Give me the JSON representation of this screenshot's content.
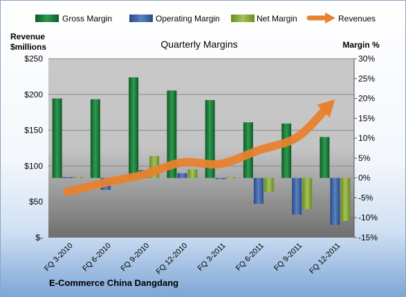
{
  "chart_data": {
    "type": "bar",
    "title": "Quarterly Margins",
    "footer": "E-Commerce China Dangdang",
    "left_axis_label_line1": "Revenue",
    "left_axis_label_line2": "$millions",
    "right_axis_label": "Margin %",
    "categories": [
      "FQ 3-2010",
      "FQ 6-2010",
      "FQ 9-2010",
      "FQ 12-2010",
      "FQ 3-2011",
      "FQ 6-2011",
      "FQ 9-2011",
      "FQ 12-2011"
    ],
    "left_ticks": [
      "$-",
      "$50",
      "$100",
      "$150",
      "$200",
      "$250"
    ],
    "left_tick_values": [
      0,
      50,
      100,
      150,
      200,
      250
    ],
    "right_ticks": [
      "-15%",
      "-10%",
      "-5%",
      "0%",
      "5%",
      "10%",
      "15%",
      "20%",
      "25%",
      "30%"
    ],
    "right_tick_values": [
      -15,
      -10,
      -5,
      0,
      5,
      10,
      15,
      20,
      25,
      30
    ],
    "ylim_left": [
      0,
      250
    ],
    "ylim_right": [
      -15,
      30
    ],
    "series": [
      {
        "name": "Gross Margin",
        "axis": "right",
        "kind": "bar",
        "color": "#1e7a3a",
        "values": [
          20.0,
          19.8,
          25.3,
          22.0,
          19.6,
          14.0,
          13.7,
          10.3
        ]
      },
      {
        "name": "Operating Margin",
        "axis": "right",
        "kind": "bar",
        "color": "#3a5fa0",
        "values": [
          0.2,
          -3.0,
          2.0,
          1.2,
          -0.3,
          -6.5,
          -9.2,
          -11.8
        ]
      },
      {
        "name": "Net Margin",
        "axis": "right",
        "kind": "bar",
        "color": "#8caa3a",
        "values": [
          0.3,
          -1.5,
          5.5,
          2.2,
          0.2,
          -3.5,
          -7.8,
          -10.8
        ]
      },
      {
        "name": "Revenues",
        "axis": "left",
        "kind": "line",
        "color": "#e8822e",
        "values": [
          64,
          77,
          88,
          105,
          103,
          122,
          140,
          193
        ]
      }
    ],
    "grid": true,
    "legend_position": "top"
  }
}
